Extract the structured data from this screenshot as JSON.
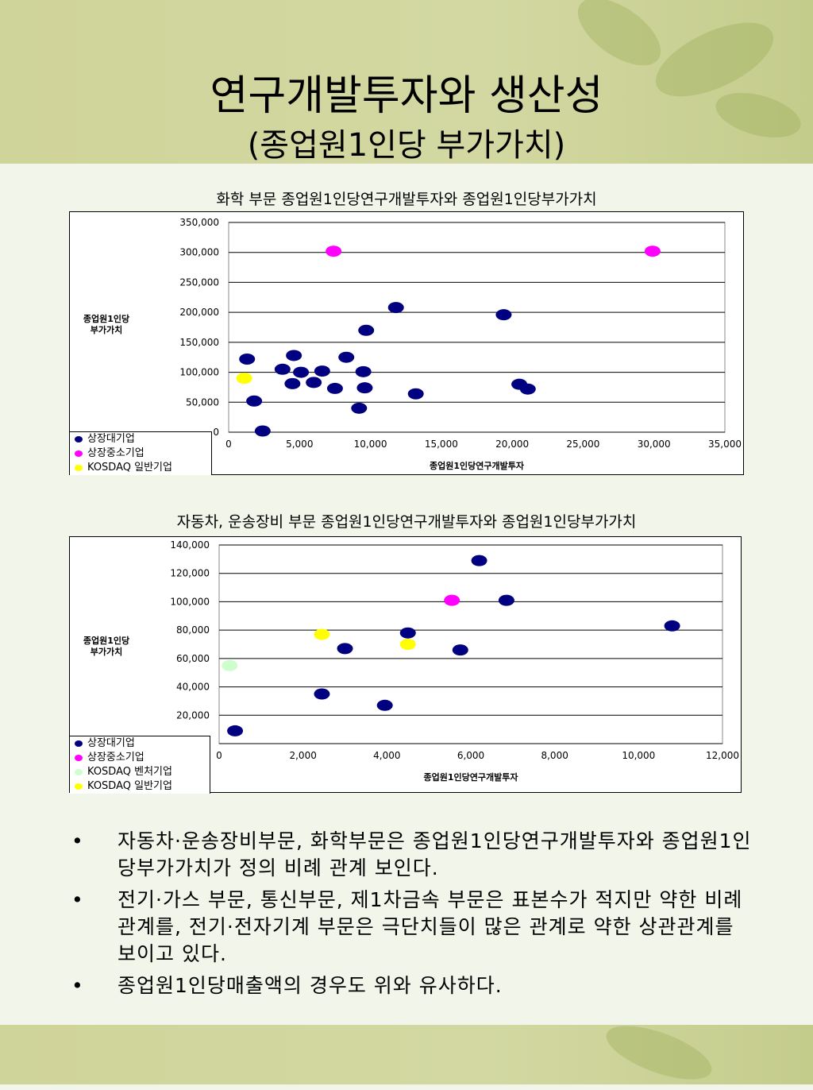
{
  "slide": {
    "title_line1": "연구개발투자와 생산성",
    "title_line2": "(종업원1인당 부가가치)"
  },
  "colors": {
    "large": "#000080",
    "sme": "#ff00ff",
    "venture": "#ccffcc",
    "general": "#ffff00"
  },
  "chart_data": [
    {
      "type": "scatter",
      "title": "화학 부문 종업원1인당연구개발투자와 종업원1인당부가가치",
      "xlabel": "종업원1인당연구개발투자",
      "ylabel_line1": "종업원1인당",
      "ylabel_line2": "부가가치",
      "xlim": [
        0,
        35000
      ],
      "ylim": [
        0,
        350000
      ],
      "xticks": [
        "0",
        "5,000",
        "10,000",
        "15,000",
        "20,000",
        "25,000",
        "30,000",
        "35,000"
      ],
      "yticks": [
        "0",
        "50,000",
        "100,000",
        "150,000",
        "200,000",
        "250,000",
        "300,000",
        "350,000"
      ],
      "grid": true,
      "legend_position": "bottom-left",
      "series": [
        {
          "name": "상장대기업",
          "color": "#000080",
          "points": [
            [
              1300,
              122000
            ],
            [
              4600,
              128000
            ],
            [
              3800,
              105000
            ],
            [
              5100,
              100000
            ],
            [
              6600,
              102000
            ],
            [
              4500,
              81000
            ],
            [
              6000,
              83000
            ],
            [
              7500,
              73000
            ],
            [
              8300,
              125000
            ],
            [
              9500,
              101000
            ],
            [
              9600,
              74000
            ],
            [
              9700,
              170000
            ],
            [
              9200,
              40000
            ],
            [
              11800,
              208000
            ],
            [
              13200,
              64000
            ],
            [
              19400,
              196000
            ],
            [
              20500,
              80000
            ],
            [
              21100,
              72000
            ],
            [
              1800,
              52000
            ],
            [
              2400,
              2000
            ]
          ]
        },
        {
          "name": "상장중소기업",
          "color": "#ff00ff",
          "points": [
            [
              7400,
              302000
            ],
            [
              29900,
              302000
            ]
          ]
        },
        {
          "name": "KOSDAQ 일반기업",
          "color": "#ffff00",
          "points": [
            [
              1100,
              90000
            ]
          ]
        }
      ]
    },
    {
      "type": "scatter",
      "title": "자동차, 운송장비 부문 종업원1인당연구개발투자와 종업원1인당부가가치",
      "xlabel": "종업원1인당연구개발투자",
      "ylabel_line1": "종업원1인당",
      "ylabel_line2": "부가가치",
      "xlim": [
        0,
        12000
      ],
      "ylim": [
        0,
        140000
      ],
      "xticks": [
        "0",
        "2,000",
        "4,000",
        "6,000",
        "8,000",
        "10,000",
        "12,000"
      ],
      "yticks": [
        "0",
        "20,000",
        "40,000",
        "60,000",
        "80,000",
        "100,000",
        "120,000",
        "140,000"
      ],
      "grid": true,
      "legend_position": "bottom-left",
      "series": [
        {
          "name": "상장대기업",
          "color": "#000080",
          "points": [
            [
              380,
              9000
            ],
            [
              2450,
              35000
            ],
            [
              3000,
              67000
            ],
            [
              3950,
              27000
            ],
            [
              4500,
              78000
            ],
            [
              5750,
              66000
            ],
            [
              6200,
              129000
            ],
            [
              6850,
              101000
            ],
            [
              10800,
              83000
            ]
          ]
        },
        {
          "name": "상장중소기업",
          "color": "#ff00ff",
          "points": [
            [
              5550,
              101000
            ]
          ]
        },
        {
          "name": "KOSDAQ 벤처기업",
          "color": "#ccffcc",
          "points": [
            [
              250,
              55000
            ]
          ]
        },
        {
          "name": "KOSDAQ 일반기업",
          "color": "#ffff00",
          "points": [
            [
              2450,
              77000
            ],
            [
              4500,
              70000
            ]
          ]
        }
      ]
    }
  ],
  "bullets": [
    "자동차·운송장비부문, 화학부문은 종업원1인당연구개발투자와 종업원1인당부가가치가 정의 비례 관계 보인다.",
    "전기·가스 부문, 통신부문, 제1차금속 부문은 표본수가 적지만 약한 비례관계를, 전기·전자기계 부문은 극단치들이 많은 관계로 약한 상관관계를 보이고 있다.",
    "종업원1인당매출액의 경우도 위와 유사하다."
  ],
  "bullet_mark": "•"
}
